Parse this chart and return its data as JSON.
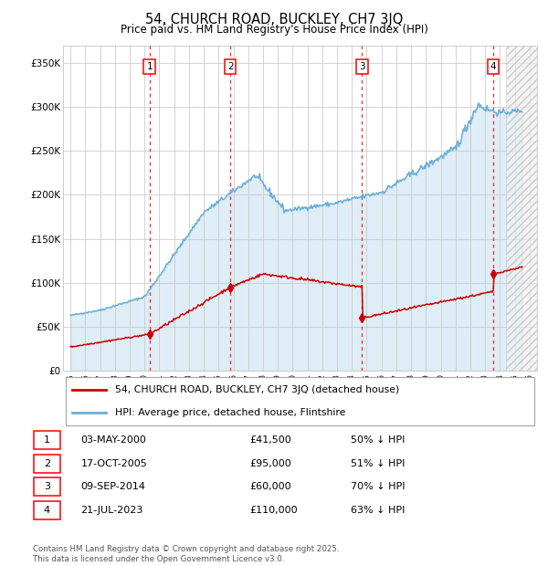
{
  "title": "54, CHURCH ROAD, BUCKLEY, CH7 3JQ",
  "subtitle": "Price paid vs. HM Land Registry's House Price Index (HPI)",
  "transactions": [
    {
      "num": 1,
      "date": "03-MAY-2000",
      "date_x": 2000.34,
      "price": 41500,
      "pct": "50% ↓ HPI"
    },
    {
      "num": 2,
      "date": "17-OCT-2005",
      "date_x": 2005.79,
      "price": 95000,
      "pct": "51% ↓ HPI"
    },
    {
      "num": 3,
      "date": "09-SEP-2014",
      "date_x": 2014.69,
      "price": 60000,
      "pct": "70% ↓ HPI"
    },
    {
      "num": 4,
      "date": "21-JUL-2023",
      "date_x": 2023.55,
      "price": 110000,
      "pct": "63% ↓ HPI"
    }
  ],
  "hpi_color": "#6baed6",
  "sale_color": "#cc0000",
  "ylim": [
    0,
    370000
  ],
  "xlim_start": 1994.5,
  "xlim_end": 2026.5,
  "footer": "Contains HM Land Registry data © Crown copyright and database right 2025.\nThis data is licensed under the Open Government Licence v3.0.",
  "legend_line1": "54, CHURCH ROAD, BUCKLEY, CH7 3JQ (detached house)",
  "legend_line2": "HPI: Average price, detached house, Flintshire"
}
